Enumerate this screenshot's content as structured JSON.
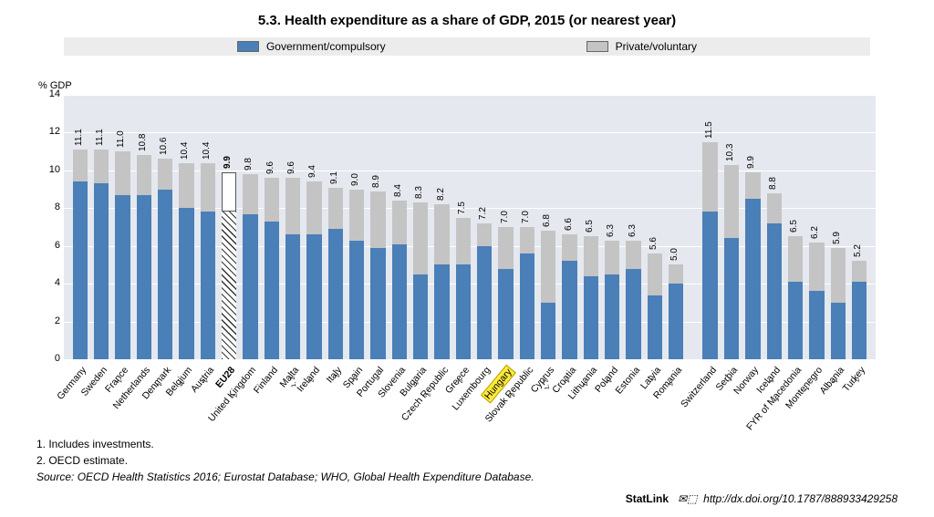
{
  "title": "5.3.  Health expenditure as a share of GDP, 2015 (or nearest year)",
  "ylabel": "% GDP",
  "legend": {
    "gov": "Government/compulsory",
    "priv": "Private/voluntary"
  },
  "colors": {
    "gov": "#4a7fb8",
    "priv": "#c4c4c4",
    "plot_bg": "#e5e8ee",
    "gridline": "#ffffff",
    "legend_bg": "#ececec",
    "highlight": "#ffeb3b"
  },
  "yaxis": {
    "min": 0,
    "max": 14,
    "step": 2,
    "ticks": [
      0,
      2,
      4,
      6,
      8,
      10,
      12,
      14
    ]
  },
  "value_label_fontsize": 10,
  "xlabel_fontsize": 10.5,
  "xlabel_rotation_deg": -50,
  "groups": [
    {
      "label": "Germany",
      "sup": "",
      "total": 11.1,
      "gov": 9.4
    },
    {
      "label": "Sweden",
      "sup": "",
      "total": 11.1,
      "gov": 9.3
    },
    {
      "label": "France",
      "sup": "2",
      "total": 11.0,
      "gov": 8.7
    },
    {
      "label": "Netherlands",
      "sup": "",
      "total": 10.8,
      "gov": 8.7
    },
    {
      "label": "Denmark",
      "sup": "2",
      "total": 10.6,
      "gov": 9.0
    },
    {
      "label": "Belgium",
      "sup": "2",
      "total": 10.4,
      "gov": 8.0
    },
    {
      "label": "Austria",
      "sup": "2",
      "total": 10.4,
      "gov": 7.8
    },
    {
      "label": "EU28",
      "sup": "",
      "total": 9.9,
      "gov": 7.8,
      "bold": true,
      "hatched": true
    },
    {
      "label": "United Kingdom",
      "sup": "2",
      "total": 9.8,
      "gov": 7.7
    },
    {
      "label": "Finland",
      "sup": "",
      "total": 9.6,
      "gov": 7.3
    },
    {
      "label": "Malta",
      "sup": "1, 2",
      "total": 9.6,
      "gov": 6.6
    },
    {
      "label": "Ireland",
      "sup": "2",
      "total": 9.4,
      "gov": 6.6
    },
    {
      "label": "Italy",
      "sup": "2",
      "total": 9.1,
      "gov": 6.9
    },
    {
      "label": "Spain",
      "sup": "2",
      "total": 9.0,
      "gov": 6.3
    },
    {
      "label": "Portugal",
      "sup": "",
      "total": 8.9,
      "gov": 5.9
    },
    {
      "label": "Slovenia",
      "sup": "",
      "total": 8.4,
      "gov": 6.1
    },
    {
      "label": "Bulgaria",
      "sup": "2",
      "total": 8.3,
      "gov": 4.5
    },
    {
      "label": "Czech Republic",
      "sup": "2",
      "total": 8.2,
      "gov": 5.0
    },
    {
      "label": "Greece",
      "sup": "2",
      "total": 7.5,
      "gov": 5.0
    },
    {
      "label": "Luxembourg",
      "sup": "",
      "total": 7.2,
      "gov": 6.0
    },
    {
      "label": "Hungary",
      "sup": "",
      "total": 7.0,
      "gov": 4.8,
      "highlight": true
    },
    {
      "label": "Slovak Republic",
      "sup": "2",
      "total": 7.0,
      "gov": 5.6
    },
    {
      "label": "Cyprus",
      "sup": "1, 2",
      "total": 6.8,
      "gov": 3.0
    },
    {
      "label": "Croatia",
      "sup": "2",
      "total": 6.6,
      "gov": 5.2
    },
    {
      "label": "Lithuania",
      "sup": "2",
      "total": 6.5,
      "gov": 4.4
    },
    {
      "label": "Poland",
      "sup": "2",
      "total": 6.3,
      "gov": 4.5
    },
    {
      "label": "Estonia",
      "sup": "",
      "total": 6.3,
      "gov": 4.8
    },
    {
      "label": "Latvia",
      "sup": "2",
      "total": 5.6,
      "gov": 3.4
    },
    {
      "label": "Romania",
      "sup": "2",
      "total": 5.0,
      "gov": 4.0
    },
    {
      "gap": true
    },
    {
      "label": "Switzerland",
      "sup": "",
      "total": 11.5,
      "gov": 7.8
    },
    {
      "label": "Serbia",
      "sup": "1",
      "total": 10.3,
      "gov": 6.4
    },
    {
      "label": "Norway",
      "sup": "",
      "total": 9.9,
      "gov": 8.5
    },
    {
      "label": "Iceland",
      "sup": "1",
      "total": 8.8,
      "gov": 7.2
    },
    {
      "label": "FYR of Macedonia",
      "sup": "1",
      "total": 6.5,
      "gov": 4.1
    },
    {
      "label": "Montenegro",
      "sup": "1",
      "total": 6.2,
      "gov": 3.6
    },
    {
      "label": "Albania",
      "sup": "1",
      "total": 5.9,
      "gov": 3.0
    },
    {
      "label": "Turkey",
      "sup": "2",
      "total": 5.2,
      "gov": 4.1
    }
  ],
  "notes": {
    "n1": "1.   Includes investments.",
    "n2": "2.   OECD estimate."
  },
  "source": "Source:  OECD Health Statistics 2016; Eurostat Database; WHO, Global Health Expenditure Database.",
  "statlink": {
    "label": "StatLink",
    "url": "http://dx.doi.org/10.1787/888933429258"
  }
}
